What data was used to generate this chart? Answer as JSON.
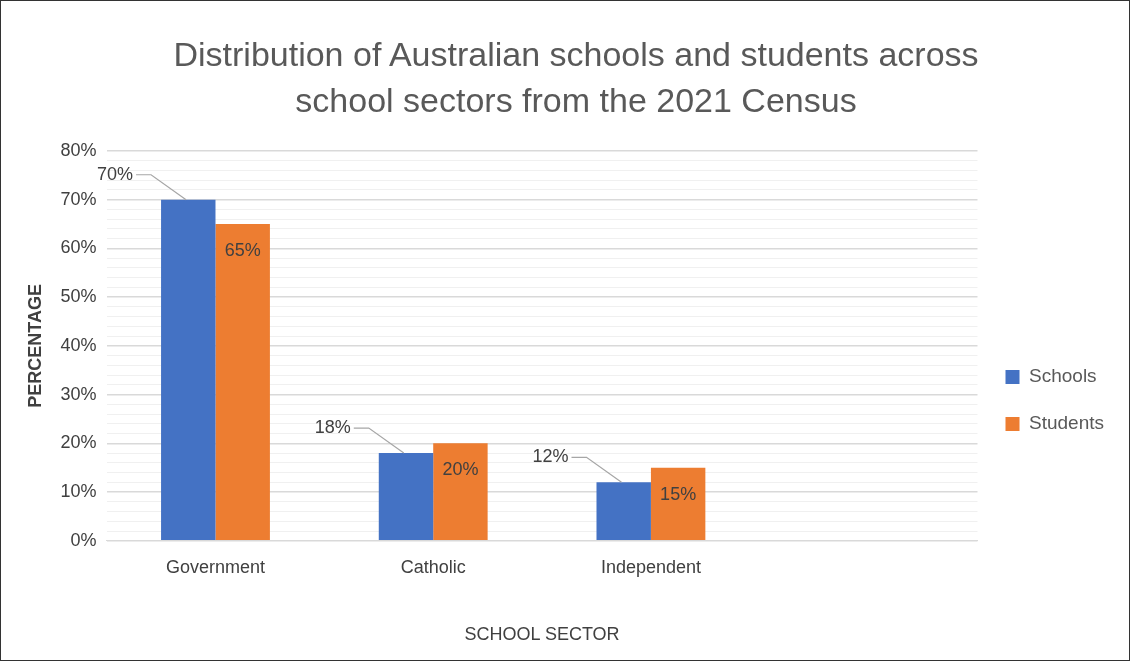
{
  "chart_data": {
    "type": "bar",
    "title": "Distribution of Australian schools and students across school sectors from the 2021 Census",
    "xlabel": "SCHOOL SECTOR",
    "ylabel": "PERCENTAGE",
    "categories": [
      "Government",
      "Catholic",
      "Independent",
      null
    ],
    "series": [
      {
        "name": "Schools",
        "color": "#4472c4",
        "values": [
          70,
          18,
          12,
          null
        ],
        "value_labels": [
          "70%",
          "18%",
          "12%",
          null
        ]
      },
      {
        "name": "Students",
        "color": "#ed7d31",
        "values": [
          65,
          20,
          15,
          null
        ],
        "value_labels": [
          "65%",
          "20%",
          "15%",
          null
        ]
      }
    ],
    "ylim": [
      0,
      80
    ],
    "yticks": [
      {
        "value": 0,
        "label": "0%"
      },
      {
        "value": 2,
        "label": null
      },
      {
        "value": 4,
        "label": null
      },
      {
        "value": 6,
        "label": null
      },
      {
        "value": 8,
        "label": null
      },
      {
        "value": 10,
        "label": "10%"
      },
      {
        "value": 12,
        "label": null
      },
      {
        "value": 14,
        "label": null
      },
      {
        "value": 16,
        "label": null
      },
      {
        "value": 18,
        "label": null
      },
      {
        "value": 20,
        "label": "20%"
      },
      {
        "value": 22,
        "label": null
      },
      {
        "value": 24,
        "label": null
      },
      {
        "value": 26,
        "label": null
      },
      {
        "value": 28,
        "label": null
      },
      {
        "value": 30,
        "label": "30%"
      },
      {
        "value": 32,
        "label": null
      },
      {
        "value": 34,
        "label": null
      },
      {
        "value": 36,
        "label": null
      },
      {
        "value": 38,
        "label": null
      },
      {
        "value": 40,
        "label": "40%"
      },
      {
        "value": 42,
        "label": null
      },
      {
        "value": 44,
        "label": null
      },
      {
        "value": 46,
        "label": null
      },
      {
        "value": 48,
        "label": null
      },
      {
        "value": 50,
        "label": "50%"
      },
      {
        "value": 52,
        "label": null
      },
      {
        "value": 54,
        "label": null
      },
      {
        "value": 56,
        "label": null
      },
      {
        "value": 58,
        "label": null
      },
      {
        "value": 60,
        "label": "60%"
      },
      {
        "value": 62,
        "label": null
      },
      {
        "value": 64,
        "label": null
      },
      {
        "value": 66,
        "label": null
      },
      {
        "value": 68,
        "label": null
      },
      {
        "value": 70,
        "label": "70%"
      },
      {
        "value": 72,
        "label": null
      },
      {
        "value": 74,
        "label": null
      },
      {
        "value": 76,
        "label": null
      },
      {
        "value": 78,
        "label": null
      },
      {
        "value": 80,
        "label": "80%"
      }
    ],
    "grid": "y",
    "legend": "right"
  }
}
